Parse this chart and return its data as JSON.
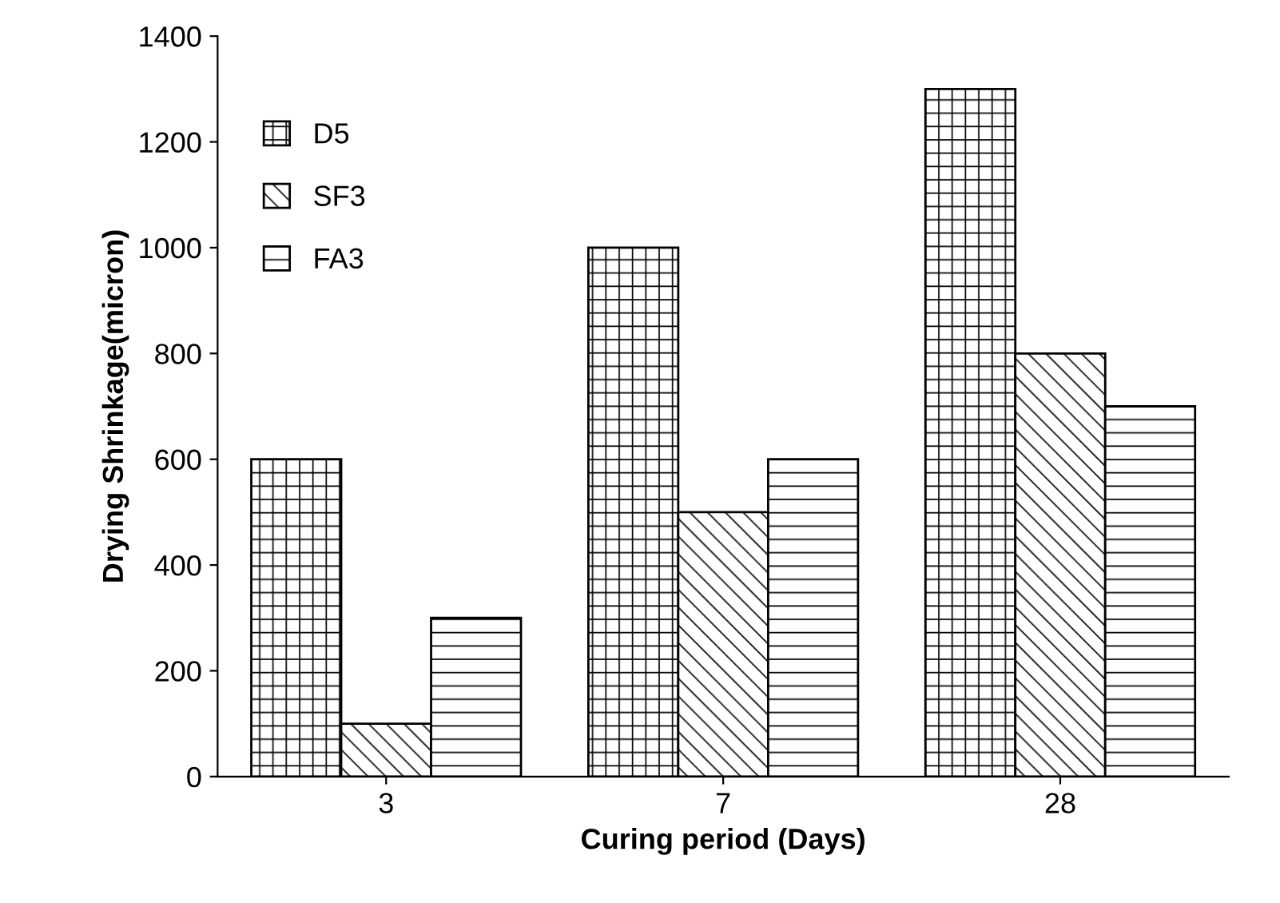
{
  "chart_data": {
    "type": "bar",
    "xlabel": "Curing period (Days)",
    "ylabel": "Drying Shrinkage(micron)",
    "categories": [
      "3",
      "7",
      "28"
    ],
    "series": [
      {
        "name": "D5",
        "color": "#000000",
        "values": [
          600,
          1000,
          1300
        ]
      },
      {
        "name": "SF3",
        "color": "#000000",
        "values": [
          100,
          500,
          800
        ]
      },
      {
        "name": "FA3",
        "color": "#000000",
        "values": [
          300,
          600,
          700
        ]
      }
    ],
    "ylim": [
      0,
      1400
    ],
    "yticks": [
      0,
      200,
      400,
      600,
      800,
      1000,
      1200,
      1400
    ],
    "grid": false,
    "legend": "top left"
  }
}
